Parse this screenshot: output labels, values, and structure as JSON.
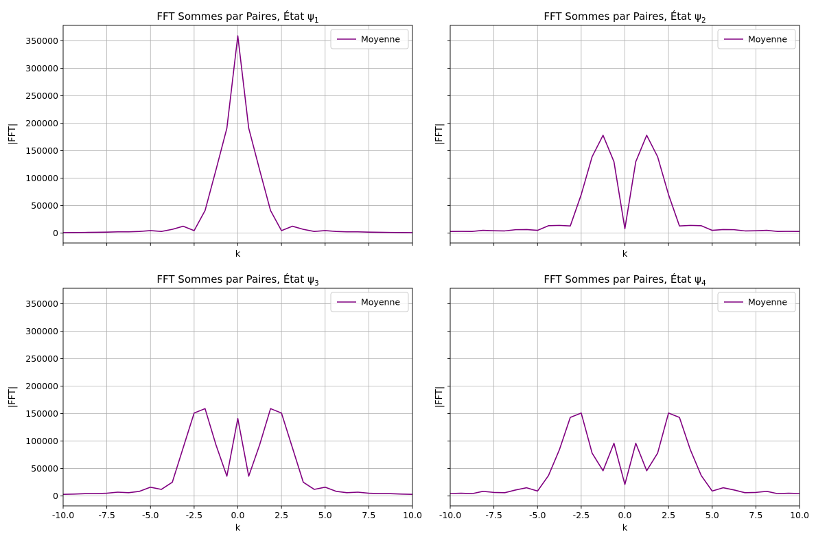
{
  "chart_data": [
    {
      "type": "line",
      "title": "FFT Sommes par Paires, État ψ",
      "title_subscript": "1",
      "xlabel": "k",
      "ylabel": "|FFT|",
      "xlim": [
        -10,
        10
      ],
      "ylim": [
        -18000,
        378000
      ],
      "xticks": [
        -10,
        -7.5,
        -5,
        -2.5,
        0,
        2.5,
        5,
        7.5,
        10
      ],
      "xtick_labels_visible": false,
      "yticks": [
        0,
        50000,
        100000,
        150000,
        200000,
        250000,
        300000,
        350000
      ],
      "ytick_labels_visible": true,
      "grid": true,
      "legend_position": "top-right",
      "series": [
        {
          "name": "Moyenne",
          "color": "#800080",
          "x": [
            -10,
            -9.375,
            -8.75,
            -8.125,
            -7.5,
            -6.875,
            -6.25,
            -5.625,
            -5,
            -4.375,
            -3.75,
            -3.125,
            -2.5,
            -1.875,
            -1.25,
            -0.625,
            0,
            0.625,
            1.25,
            1.875,
            2.5,
            3.125,
            3.75,
            4.375,
            5,
            5.625,
            6.25,
            6.875,
            7.5,
            8.125,
            8.75,
            9.375,
            10
          ],
          "y": [
            800,
            1000,
            1200,
            1400,
            1800,
            2300,
            2300,
            3000,
            4600,
            3000,
            6800,
            12500,
            4500,
            41000,
            115000,
            191000,
            359000,
            191000,
            115000,
            41000,
            4500,
            12500,
            6800,
            3000,
            4600,
            3000,
            2300,
            2300,
            1800,
            1400,
            1200,
            1000,
            800
          ]
        }
      ]
    },
    {
      "type": "line",
      "title": "FFT Sommes par Paires, État ψ",
      "title_subscript": "2",
      "xlabel": "k",
      "ylabel": "|FFT|",
      "xlim": [
        -10,
        10
      ],
      "ylim": [
        -18000,
        378000
      ],
      "xticks": [
        -10,
        -7.5,
        -5,
        -2.5,
        0,
        2.5,
        5,
        7.5,
        10
      ],
      "xtick_labels_visible": false,
      "yticks": [
        0,
        50000,
        100000,
        150000,
        200000,
        250000,
        300000,
        350000
      ],
      "ytick_labels_visible": false,
      "grid": true,
      "legend_position": "top-right",
      "series": [
        {
          "name": "Moyenne",
          "color": "#800080",
          "x": [
            -10,
            -9.375,
            -8.75,
            -8.125,
            -7.5,
            -6.875,
            -6.25,
            -5.625,
            -5,
            -4.375,
            -3.75,
            -3.125,
            -2.5,
            -1.875,
            -1.25,
            -0.625,
            0,
            0.625,
            1.25,
            1.875,
            2.5,
            3.125,
            3.75,
            4.375,
            5,
            5.625,
            6.25,
            6.875,
            7.5,
            8.125,
            8.75,
            9.375,
            10
          ],
          "y": [
            3000,
            3200,
            3000,
            5000,
            4300,
            4000,
            6200,
            6400,
            5000,
            13400,
            14000,
            13000,
            70000,
            139000,
            178000,
            130000,
            8000,
            130000,
            178000,
            139000,
            70000,
            13000,
            14000,
            13400,
            5000,
            6400,
            6200,
            4000,
            4300,
            5000,
            3000,
            3200,
            3000
          ]
        }
      ]
    },
    {
      "type": "line",
      "title": "FFT Sommes par Paires, État ψ",
      "title_subscript": "3",
      "xlabel": "k",
      "ylabel": "|FFT|",
      "xlim": [
        -10,
        10
      ],
      "ylim": [
        -18000,
        378000
      ],
      "xticks": [
        -10,
        -7.5,
        -5,
        -2.5,
        0,
        2.5,
        5,
        7.5,
        10
      ],
      "xtick_labels_visible": true,
      "yticks": [
        0,
        50000,
        100000,
        150000,
        200000,
        250000,
        300000,
        350000
      ],
      "ytick_labels_visible": true,
      "grid": true,
      "legend_position": "top-right",
      "series": [
        {
          "name": "Moyenne",
          "color": "#800080",
          "x": [
            -10,
            -9.375,
            -8.75,
            -8.125,
            -7.5,
            -6.875,
            -6.25,
            -5.625,
            -5,
            -4.375,
            -3.75,
            -3.125,
            -2.5,
            -1.875,
            -1.25,
            -0.625,
            0,
            0.625,
            1.25,
            1.875,
            2.5,
            3.125,
            3.75,
            4.375,
            5,
            5.625,
            6.25,
            6.875,
            7.5,
            8.125,
            8.75,
            9.375,
            10
          ],
          "y": [
            3000,
            3500,
            4200,
            4200,
            5000,
            7000,
            6000,
            8500,
            16000,
            12000,
            25000,
            88000,
            151000,
            159000,
            93000,
            36000,
            141000,
            36000,
            93000,
            159000,
            151000,
            88000,
            25000,
            12000,
            16000,
            8500,
            6000,
            7000,
            5000,
            4200,
            4200,
            3500,
            3000
          ]
        }
      ]
    },
    {
      "type": "line",
      "title": "FFT Sommes par Paires, État ψ",
      "title_subscript": "4",
      "xlabel": "k",
      "ylabel": "|FFT|",
      "xlim": [
        -10,
        10
      ],
      "ylim": [
        -18000,
        378000
      ],
      "xticks": [
        -10,
        -7.5,
        -5,
        -2.5,
        0,
        2.5,
        5,
        7.5,
        10
      ],
      "xtick_labels_visible": true,
      "yticks": [
        0,
        50000,
        100000,
        150000,
        200000,
        250000,
        300000,
        350000
      ],
      "ytick_labels_visible": false,
      "grid": true,
      "legend_position": "top-right",
      "series": [
        {
          "name": "Moyenne",
          "color": "#800080",
          "x": [
            -10,
            -9.375,
            -8.75,
            -8.125,
            -7.5,
            -6.875,
            -6.25,
            -5.625,
            -5,
            -4.375,
            -3.75,
            -3.125,
            -2.5,
            -1.875,
            -1.25,
            -0.625,
            0,
            0.625,
            1.25,
            1.875,
            2.5,
            3.125,
            3.75,
            4.375,
            5,
            5.625,
            6.25,
            6.875,
            7.5,
            8.125,
            8.75,
            9.375,
            10
          ],
          "y": [
            4500,
            5000,
            4200,
            8500,
            6500,
            6000,
            11000,
            15000,
            9000,
            37000,
            84000,
            143000,
            151000,
            78000,
            46000,
            96000,
            21000,
            96000,
            46000,
            78000,
            151000,
            143000,
            84000,
            37000,
            9000,
            15000,
            11000,
            6000,
            6500,
            8500,
            4200,
            5000,
            4500
          ]
        }
      ]
    }
  ]
}
